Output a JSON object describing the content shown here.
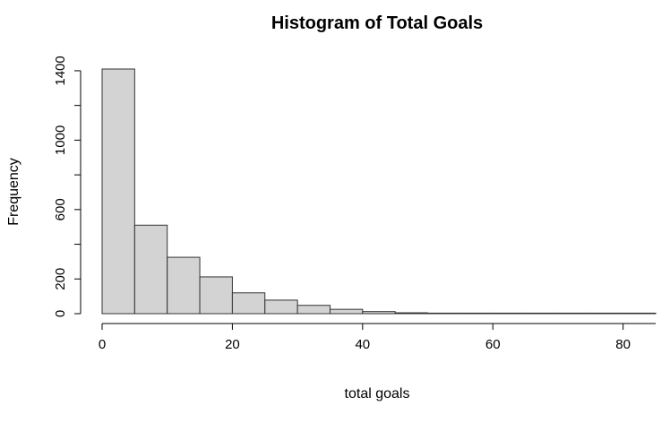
{
  "chart_data": {
    "type": "bar",
    "subtype": "histogram",
    "title": "Histogram of Total Goals",
    "xlabel": "total goals",
    "ylabel": "Frequency",
    "bins": [
      {
        "x0": 0,
        "x1": 5,
        "count": 1410
      },
      {
        "x0": 5,
        "x1": 10,
        "count": 510
      },
      {
        "x0": 10,
        "x1": 15,
        "count": 325
      },
      {
        "x0": 15,
        "x1": 20,
        "count": 212
      },
      {
        "x0": 20,
        "x1": 25,
        "count": 120
      },
      {
        "x0": 25,
        "x1": 30,
        "count": 78
      },
      {
        "x0": 30,
        "x1": 35,
        "count": 48
      },
      {
        "x0": 35,
        "x1": 40,
        "count": 25
      },
      {
        "x0": 40,
        "x1": 45,
        "count": 12
      },
      {
        "x0": 45,
        "x1": 50,
        "count": 5
      },
      {
        "x0": 50,
        "x1": 55,
        "count": 1
      },
      {
        "x0": 55,
        "x1": 60,
        "count": 3
      },
      {
        "x0": 60,
        "x1": 65,
        "count": 0
      },
      {
        "x0": 65,
        "x1": 70,
        "count": 0
      },
      {
        "x0": 70,
        "x1": 75,
        "count": 0
      },
      {
        "x0": 75,
        "x1": 80,
        "count": 0
      },
      {
        "x0": 80,
        "x1": 85,
        "count": 0
      }
    ],
    "xlim": [
      0,
      85
    ],
    "ylim": [
      0,
      1410
    ],
    "x_ticks": [
      0,
      20,
      40,
      60,
      80
    ],
    "y_ticks": [
      0,
      200,
      600,
      1000,
      1400
    ],
    "y_minor_ticks": [
      400,
      800,
      1200
    ],
    "grid": false,
    "bar_color": "#d3d3d3",
    "edge_color": "#333333"
  }
}
